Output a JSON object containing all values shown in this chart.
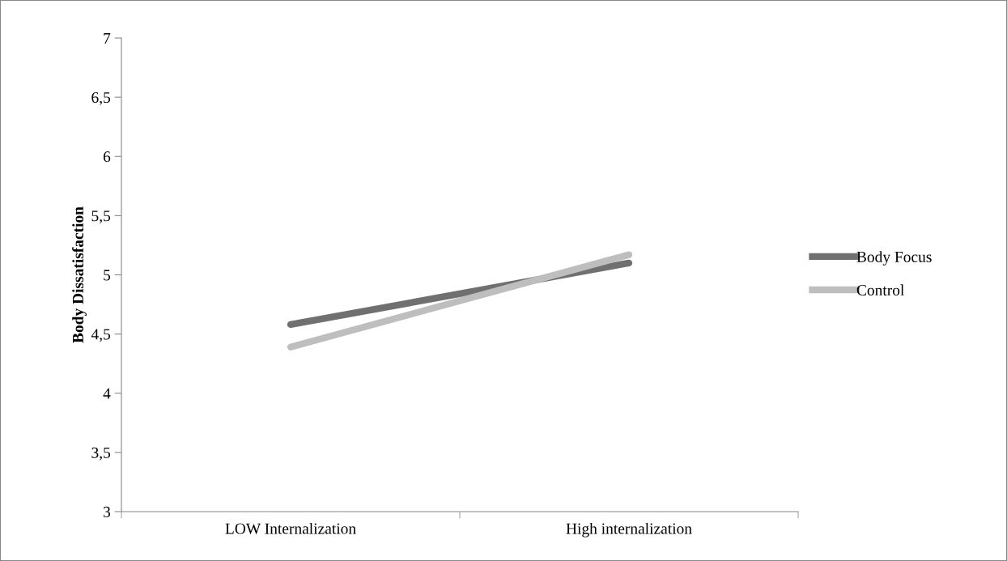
{
  "chart_data": {
    "type": "line",
    "ylabel": "Body Dissatisfaction",
    "categories": [
      "LOW Internalization",
      "High internalization"
    ],
    "series": [
      {
        "name": "Body Focus",
        "color": "#707070",
        "values": [
          4.58,
          5.1
        ]
      },
      {
        "name": "Control",
        "color": "#bebebe",
        "values": [
          4.39,
          5.17
        ]
      }
    ],
    "ylim": [
      3,
      7
    ],
    "yticks": [
      3,
      {
        "value": 3.5,
        "label": "3,5"
      },
      4,
      {
        "value": 4.5,
        "label": "4,5"
      },
      5,
      {
        "value": 5.5,
        "label": "5,5"
      },
      6,
      {
        "value": 6.5,
        "label": "6,5"
      },
      7
    ],
    "legend": "right",
    "grid": false,
    "marker": "none",
    "line_style": "solid"
  }
}
